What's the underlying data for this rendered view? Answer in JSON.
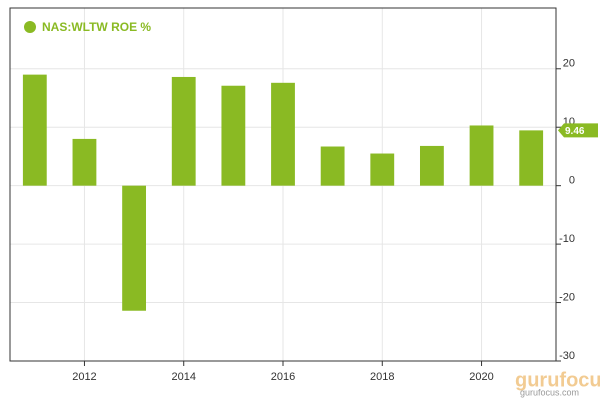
{
  "chart_data": {
    "type": "bar",
    "x": [
      2011,
      2012,
      2013,
      2014,
      2015,
      2016,
      2017,
      2018,
      2019,
      2020,
      2021
    ],
    "series": [
      {
        "name": "NAS:WLTW ROE %",
        "color": "#8aba23",
        "values": [
          19.0,
          8.0,
          -21.4,
          18.6,
          17.1,
          17.6,
          6.7,
          5.5,
          6.8,
          10.3,
          9.46
        ]
      }
    ],
    "xlim": [
      2010.5,
      2021.5
    ],
    "xticks": [
      2012,
      2014,
      2016,
      2018,
      2020
    ],
    "ylim": [
      -30,
      30.4
    ],
    "yticks": [
      -30,
      -20,
      -10,
      0,
      10,
      20
    ],
    "grid": true,
    "legend": "top-left",
    "watermark": {
      "logo": "gurufocus",
      "site": "gurufocus.com"
    }
  }
}
